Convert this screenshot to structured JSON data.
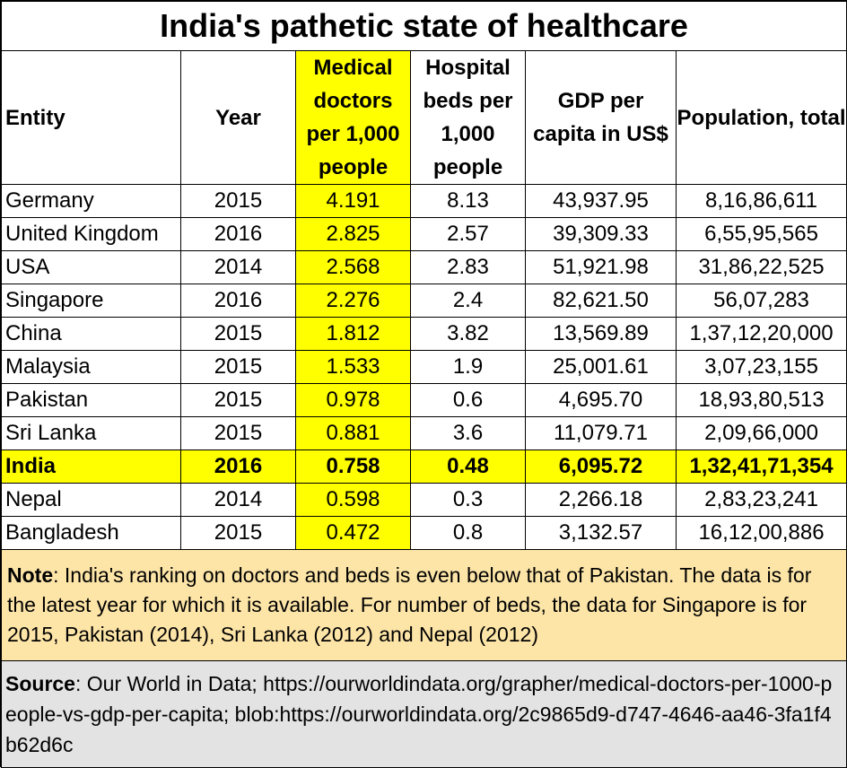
{
  "title": "India's pathetic state of healthcare",
  "table": {
    "headers": {
      "entity": "Entity",
      "year": "Year",
      "doctors": "Medical doctors per 1,000 people",
      "beds": "Hospital beds per 1,000 people",
      "gdp": "GDP per capita in US$",
      "population": "Population, total"
    },
    "rows": [
      {
        "entity": "Germany",
        "year": "2015",
        "doctors": "4.191",
        "beds": "8.13",
        "gdp": "43,937.95",
        "population": "8,16,86,611"
      },
      {
        "entity": "United Kingdom",
        "year": "2016",
        "doctors": "2.825",
        "beds": "2.57",
        "gdp": "39,309.33",
        "population": "6,55,95,565"
      },
      {
        "entity": "USA",
        "year": "2014",
        "doctors": "2.568",
        "beds": "2.83",
        "gdp": "51,921.98",
        "population": "31,86,22,525"
      },
      {
        "entity": "Singapore",
        "year": "2016",
        "doctors": "2.276",
        "beds": "2.4",
        "gdp": "82,621.50",
        "population": "56,07,283"
      },
      {
        "entity": "China",
        "year": "2015",
        "doctors": "1.812",
        "beds": "3.82",
        "gdp": "13,569.89",
        "population": "1,37,12,20,000"
      },
      {
        "entity": "Malaysia",
        "year": "2015",
        "doctors": "1.533",
        "beds": "1.9",
        "gdp": "25,001.61",
        "population": "3,07,23,155"
      },
      {
        "entity": "Pakistan",
        "year": "2015",
        "doctors": "0.978",
        "beds": "0.6",
        "gdp": "4,695.70",
        "population": "18,93,80,513"
      },
      {
        "entity": "Sri Lanka",
        "year": "2015",
        "doctors": "0.881",
        "beds": "3.6",
        "gdp": "11,079.71",
        "population": "2,09,66,000"
      },
      {
        "entity": "India",
        "year": "2016",
        "doctors": "0.758",
        "beds": "0.48",
        "gdp": "6,095.72",
        "population": "1,32,41,71,354"
      },
      {
        "entity": "Nepal",
        "year": "2014",
        "doctors": "0.598",
        "beds": "0.3",
        "gdp": "2,266.18",
        "population": "2,83,23,241"
      },
      {
        "entity": "Bangladesh",
        "year": "2015",
        "doctors": "0.472",
        "beds": "0.8",
        "gdp": "3,132.57",
        "population": "16,12,00,886"
      }
    ]
  },
  "note": {
    "label": "Note",
    "text": ":  India's ranking on doctors and beds is even below that of Pakistan. The data is for the latest year for which it is available. For number of beds, the data for Singapore is for 2015, Pakistan (2014), Sri Lanka (2012) and Nepal (2012)"
  },
  "source": {
    "label": "Source",
    "text": ": Our World in Data; https://ourworldindata.org/grapher/medical-doctors-per-1000-people-vs-gdp-per-capita; blob:https://ourworldindata.org/2c9865d9-d747-4646-aa46-3fa1f4b62d6c"
  },
  "colors": {
    "highlight": "#ffff00",
    "note_background": "#fde5a8",
    "source_background": "#e3e3e3"
  }
}
